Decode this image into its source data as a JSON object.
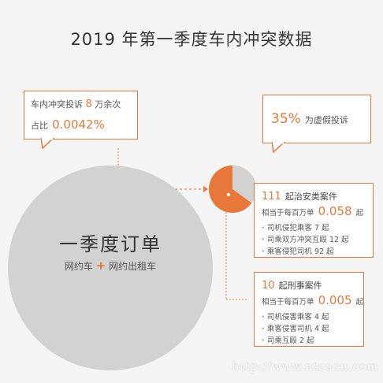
{
  "title": "2019 年第一季度车内冲突数据",
  "complaints": {
    "line1_prefix": "车内冲突投诉",
    "count": "8",
    "line1_suffix": "万余次",
    "ratio_label": "占比",
    "ratio": "0.0042%"
  },
  "fake": {
    "percent": "35%",
    "label": "为虚假投诉"
  },
  "orders": {
    "title": "一季度订单",
    "part1": "网约车",
    "plus": "+",
    "part2": "网约出租车"
  },
  "security": {
    "count": "111",
    "label": "起治安类案件",
    "per_million_label": "相当于每百万单",
    "per_million": "0.058",
    "unit": "起",
    "items": [
      "司机侵犯乘客 7 起",
      "司乘双方冲突互殴 12 起",
      "乘客侵犯司机 92 起"
    ]
  },
  "criminal": {
    "count": "10",
    "label": "起刑事案件",
    "per_million_label": "相当于每百万单",
    "per_million": "0.005",
    "unit": "起",
    "items": [
      "司机侵害乘客 4 起",
      "乘客侵害司机 4 起",
      "司乘互殴 2 起"
    ]
  },
  "pie_chart": {
    "fake_share": 35,
    "colors": {
      "fake": "#d2d2d2",
      "real": "#e8773a",
      "accent": "#e8773a"
    }
  },
  "watermark": "http://www.ntcedu.com"
}
